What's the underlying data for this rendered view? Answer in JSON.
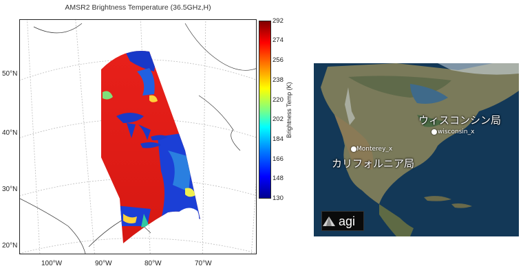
{
  "left_map": {
    "title": "AMSR2 Brightness Temperature (36.5GHz,H)",
    "latitude_labels": [
      "50°N",
      "40°N",
      "30°N",
      "20°N"
    ],
    "longitude_labels": [
      "100°W",
      "90°W",
      "80°W",
      "70°W"
    ],
    "colorbar": {
      "label": "Brightness Temp (K)",
      "ticks": [
        "292",
        "274",
        "256",
        "238",
        "220",
        "202",
        "184",
        "166",
        "148",
        "130"
      ],
      "range": [
        130,
        292
      ],
      "colors": [
        "#00008f",
        "#0000ff",
        "#00ffff",
        "#ffff00",
        "#ff0000",
        "#800000"
      ]
    }
  },
  "right_map": {
    "stations": [
      {
        "label": "ウィスコンシン局",
        "marker_label": "wisconsin_x"
      },
      {
        "label": "カリフォルニア局",
        "marker_label": "Monterey_x"
      }
    ],
    "logo": "agi"
  }
}
